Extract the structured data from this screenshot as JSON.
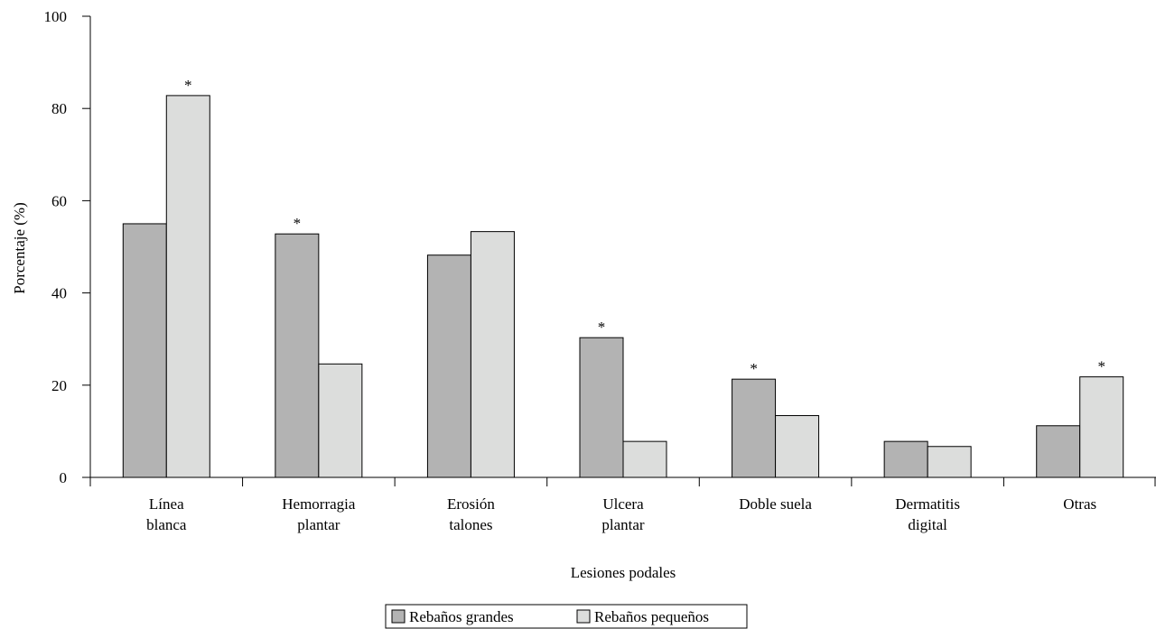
{
  "chart_data": {
    "type": "bar",
    "title": "",
    "xlabel": "Lesiones podales",
    "ylabel": "Porcentaje (%)",
    "ylim": [
      0,
      100
    ],
    "yticks": [
      "0",
      "20",
      "40",
      "60",
      "80",
      "100"
    ],
    "categories": [
      [
        "Línea",
        "blanca"
      ],
      [
        "Hemorragia",
        "plantar"
      ],
      [
        "Erosión",
        "talones"
      ],
      [
        "Ulcera",
        "plantar"
      ],
      [
        "Doble suela"
      ],
      [
        "Dermatitis",
        "digital"
      ],
      [
        "Otras"
      ]
    ],
    "series": [
      {
        "name": "Rebaños grandes",
        "color": "#b3b3b3",
        "values": [
          55,
          52.8,
          48.2,
          30.3,
          21.3,
          7.8,
          11.2
        ],
        "significant": [
          false,
          true,
          false,
          true,
          true,
          false,
          false
        ]
      },
      {
        "name": "Rebaños pequeños",
        "color": "#dcdddc",
        "values": [
          82.8,
          24.6,
          53.3,
          7.8,
          13.4,
          6.7,
          21.8
        ],
        "significant": [
          true,
          false,
          false,
          false,
          false,
          false,
          true
        ]
      }
    ],
    "significance_marker": "*",
    "grid": false,
    "legend_position": "bottom-center"
  }
}
